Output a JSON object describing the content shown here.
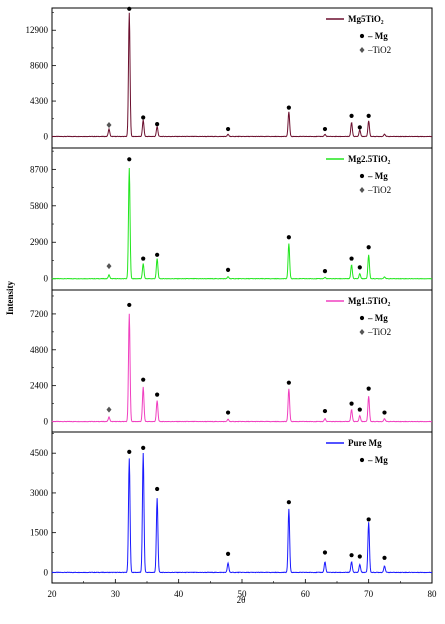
{
  "chart_data": {
    "type": "line",
    "xlabel": "2θ",
    "ylabel": "Intensity",
    "xlim": [
      20,
      80
    ],
    "x_ticks": [
      "20",
      "30",
      "40",
      "50",
      "60",
      "70",
      "80"
    ],
    "panels": [
      {
        "name": "Mg5TiO2",
        "legend": [
          "Mg5TiO₂",
          "– Mg",
          "–TiO2"
        ],
        "color": "#6b0f2e",
        "yticks": [
          "0",
          "4300",
          "8600",
          "12900"
        ],
        "ylim": [
          -1400,
          15600
        ],
        "baseline": 0,
        "peaks": [
          {
            "x": 29.0,
            "y": 900
          },
          {
            "x": 32.2,
            "y": 15000
          },
          {
            "x": 34.4,
            "y": 2000
          },
          {
            "x": 36.6,
            "y": 1200
          },
          {
            "x": 47.8,
            "y": 250
          },
          {
            "x": 57.4,
            "y": 3000
          },
          {
            "x": 63.1,
            "y": 250
          },
          {
            "x": 67.3,
            "y": 1700
          },
          {
            "x": 68.6,
            "y": 800
          },
          {
            "x": 70.0,
            "y": 1900
          },
          {
            "x": 72.5,
            "y": 300
          }
        ],
        "mg_markers": [
          {
            "x": 32.2,
            "y": 15500
          },
          {
            "x": 34.4,
            "y": 2300
          },
          {
            "x": 36.6,
            "y": 1500
          },
          {
            "x": 47.8,
            "y": 900
          },
          {
            "x": 57.4,
            "y": 3500
          },
          {
            "x": 63.1,
            "y": 900
          },
          {
            "x": 67.3,
            "y": 2500
          },
          {
            "x": 68.6,
            "y": 1100
          },
          {
            "x": 70.0,
            "y": 2500
          }
        ],
        "tio2_markers": [
          {
            "x": 29.0,
            "y": 1400
          }
        ]
      },
      {
        "name": "Mg2.5TiO2",
        "legend": [
          "Mg2.5TiO₂",
          "– Mg",
          "–TiO2"
        ],
        "color": "#22e61e",
        "yticks": [
          "0",
          "2900",
          "5800",
          "8700"
        ],
        "ylim": [
          -900,
          10400
        ],
        "baseline": 0,
        "peaks": [
          {
            "x": 29.0,
            "y": 300
          },
          {
            "x": 32.2,
            "y": 8800
          },
          {
            "x": 34.4,
            "y": 1200
          },
          {
            "x": 36.6,
            "y": 1600
          },
          {
            "x": 47.8,
            "y": 150
          },
          {
            "x": 57.4,
            "y": 2800
          },
          {
            "x": 63.1,
            "y": 100
          },
          {
            "x": 67.3,
            "y": 1100
          },
          {
            "x": 68.6,
            "y": 400
          },
          {
            "x": 70.0,
            "y": 1900
          },
          {
            "x": 72.5,
            "y": 150
          }
        ],
        "mg_markers": [
          {
            "x": 32.2,
            "y": 9500
          },
          {
            "x": 34.4,
            "y": 1600
          },
          {
            "x": 36.6,
            "y": 1900
          },
          {
            "x": 47.8,
            "y": 700
          },
          {
            "x": 57.4,
            "y": 3300
          },
          {
            "x": 63.1,
            "y": 600
          },
          {
            "x": 67.3,
            "y": 1600
          },
          {
            "x": 68.6,
            "y": 900
          },
          {
            "x": 70.0,
            "y": 2500
          }
        ],
        "tio2_markers": [
          {
            "x": 29.0,
            "y": 1000
          }
        ]
      },
      {
        "name": "Mg1.5TiO2",
        "legend": [
          "Mg1.5TiO₂",
          "– Mg",
          "–TiO2"
        ],
        "color": "#f040c0",
        "yticks": [
          "0",
          "2400",
          "4800",
          "7200"
        ],
        "ylim": [
          -700,
          8800
        ],
        "baseline": 0,
        "peaks": [
          {
            "x": 29.0,
            "y": 300
          },
          {
            "x": 32.2,
            "y": 7200
          },
          {
            "x": 34.4,
            "y": 2300
          },
          {
            "x": 36.6,
            "y": 1400
          },
          {
            "x": 47.8,
            "y": 150
          },
          {
            "x": 57.4,
            "y": 2200
          },
          {
            "x": 63.1,
            "y": 200
          },
          {
            "x": 67.3,
            "y": 800
          },
          {
            "x": 68.6,
            "y": 400
          },
          {
            "x": 70.0,
            "y": 1700
          },
          {
            "x": 72.5,
            "y": 200
          }
        ],
        "mg_markers": [
          {
            "x": 32.2,
            "y": 7800
          },
          {
            "x": 34.4,
            "y": 2800
          },
          {
            "x": 36.6,
            "y": 1800
          },
          {
            "x": 47.8,
            "y": 600
          },
          {
            "x": 57.4,
            "y": 2600
          },
          {
            "x": 63.1,
            "y": 700
          },
          {
            "x": 67.3,
            "y": 1200
          },
          {
            "x": 68.6,
            "y": 800
          },
          {
            "x": 70.0,
            "y": 2200
          },
          {
            "x": 72.5,
            "y": 600
          }
        ],
        "tio2_markers": [
          {
            "x": 29.0,
            "y": 800
          }
        ]
      },
      {
        "name": "Pure Mg",
        "legend": [
          "Pure Mg",
          "– Mg"
        ],
        "color": "#1a1aff",
        "yticks": [
          "0",
          "1500",
          "3000",
          "4500"
        ],
        "ylim": [
          -400,
          5300
        ],
        "baseline": 0,
        "peaks": [
          {
            "x": 32.2,
            "y": 4300
          },
          {
            "x": 34.4,
            "y": 4500
          },
          {
            "x": 36.6,
            "y": 2800
          },
          {
            "x": 47.8,
            "y": 350
          },
          {
            "x": 57.4,
            "y": 2400
          },
          {
            "x": 63.1,
            "y": 400
          },
          {
            "x": 67.3,
            "y": 400
          },
          {
            "x": 68.6,
            "y": 300
          },
          {
            "x": 70.0,
            "y": 1900
          },
          {
            "x": 72.5,
            "y": 250
          }
        ],
        "mg_markers": [
          {
            "x": 32.2,
            "y": 4550
          },
          {
            "x": 34.4,
            "y": 4700
          },
          {
            "x": 36.6,
            "y": 3150
          },
          {
            "x": 47.8,
            "y": 700
          },
          {
            "x": 57.4,
            "y": 2650
          },
          {
            "x": 63.1,
            "y": 750
          },
          {
            "x": 67.3,
            "y": 650
          },
          {
            "x": 68.6,
            "y": 600
          },
          {
            "x": 70.0,
            "y": 2000
          },
          {
            "x": 72.5,
            "y": 550
          }
        ],
        "tio2_markers": []
      }
    ]
  }
}
